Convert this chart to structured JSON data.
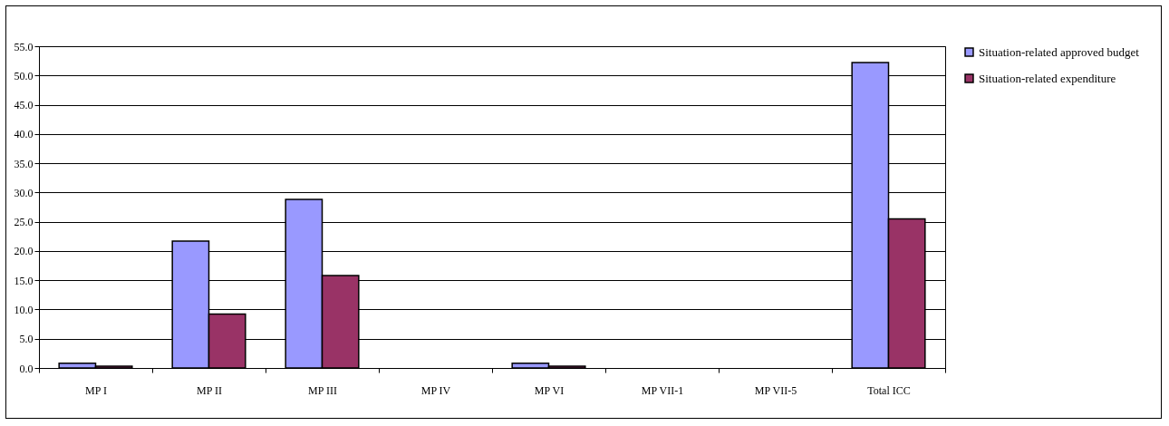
{
  "chart_data": {
    "type": "bar",
    "categories": [
      "MP I",
      "MP II",
      "MP III",
      "MP IV",
      "MP VI",
      "MP VII-1",
      "MP VII-5",
      "Total ICC"
    ],
    "series": [
      {
        "name": "Situation-related approved budget",
        "color": "#9999ff",
        "values": [
          0.8,
          21.7,
          28.8,
          null,
          0.8,
          null,
          null,
          52.2
        ]
      },
      {
        "name": "Situation-related expenditure",
        "color": "#993366",
        "values": [
          0.3,
          9.2,
          15.8,
          null,
          0.3,
          null,
          null,
          25.5
        ]
      }
    ],
    "ylim": [
      0,
      55
    ],
    "yticks": [
      {
        "value": 0,
        "label": "0.0"
      },
      {
        "value": 5,
        "label": "5.0"
      },
      {
        "value": 10,
        "label": "10.0"
      },
      {
        "value": 15,
        "label": "15.0"
      },
      {
        "value": 20,
        "label": "20.0"
      },
      {
        "value": 25,
        "label": "25.0"
      },
      {
        "value": 30,
        "label": "30.0"
      },
      {
        "value": 35,
        "label": "35.0"
      },
      {
        "value": 40,
        "label": "40.0"
      },
      {
        "value": 45,
        "label": "45.0"
      },
      {
        "value": 50,
        "label": "50.0"
      },
      {
        "value": 55,
        "label": "55.0"
      }
    ],
    "grid": "y",
    "legend": "right"
  }
}
